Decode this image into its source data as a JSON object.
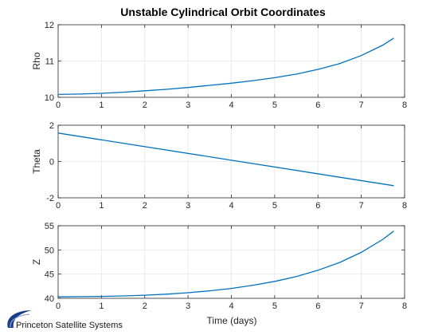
{
  "logo": {
    "text": "Princeton Satellite Systems"
  },
  "chart_data": {
    "type": "line",
    "title": "Unstable Cylindrical Orbit Coordinates",
    "xlabel": "Time (days)",
    "xlim": [
      0,
      8
    ],
    "xticks": [
      0,
      1,
      2,
      3,
      4,
      5,
      6,
      7,
      8
    ],
    "grid": true,
    "line_color": "#0072BD",
    "subplots": [
      {
        "ylabel": "Rho",
        "ylim": [
          10,
          12
        ],
        "yticks": [
          10,
          11,
          12
        ],
        "x": [
          0,
          0.5,
          1,
          1.5,
          2,
          2.5,
          3,
          3.5,
          4,
          4.5,
          5,
          5.5,
          6,
          6.5,
          7,
          7.5,
          7.75
        ],
        "y": [
          10.08,
          10.09,
          10.11,
          10.14,
          10.18,
          10.22,
          10.27,
          10.33,
          10.39,
          10.46,
          10.54,
          10.64,
          10.77,
          10.93,
          11.15,
          11.44,
          11.63
        ]
      },
      {
        "ylabel": "Theta",
        "ylim": [
          -2,
          2
        ],
        "yticks": [
          -2,
          0,
          2
        ],
        "x": [
          0,
          7.75
        ],
        "y": [
          1.57,
          -1.33
        ]
      },
      {
        "ylabel": "Z",
        "ylim": [
          40,
          55
        ],
        "yticks": [
          40,
          45,
          50,
          55
        ],
        "x": [
          0,
          0.5,
          1,
          1.5,
          2,
          2.5,
          3,
          3.5,
          4,
          4.5,
          5,
          5.5,
          6,
          6.5,
          7,
          7.5,
          7.75
        ],
        "y": [
          40.3,
          40.35,
          40.4,
          40.5,
          40.65,
          40.85,
          41.15,
          41.55,
          42.05,
          42.7,
          43.5,
          44.5,
          45.8,
          47.4,
          49.5,
          52.2,
          53.9
        ]
      }
    ]
  }
}
